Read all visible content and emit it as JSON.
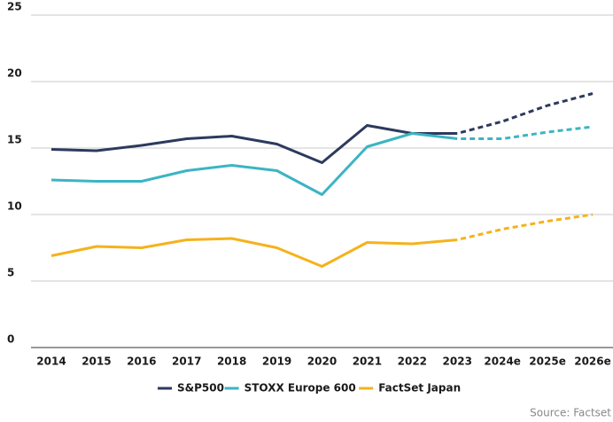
{
  "chart_data": {
    "type": "line",
    "categories": [
      "2014",
      "2015",
      "2016",
      "2017",
      "2018",
      "2019",
      "2020",
      "2021",
      "2022",
      "2023",
      "2024e",
      "2025e",
      "2026e"
    ],
    "series": [
      {
        "name": "S&P500",
        "color": "#2d3a5e",
        "values": [
          14.9,
          14.8,
          15.2,
          15.7,
          15.9,
          15.3,
          13.9,
          16.7,
          16.1,
          16.1,
          17.0,
          18.2,
          19.1
        ]
      },
      {
        "name": "STOXX Europe 600",
        "color": "#3cb4c3",
        "values": [
          12.6,
          12.5,
          12.5,
          13.3,
          13.7,
          13.3,
          11.5,
          15.1,
          16.1,
          15.7,
          15.7,
          16.2,
          16.6
        ]
      },
      {
        "name": "FactSet Japan",
        "color": "#f5b21c",
        "values": [
          6.9,
          7.6,
          7.5,
          8.1,
          8.2,
          7.5,
          6.1,
          7.9,
          7.8,
          8.1,
          8.9,
          9.5,
          10.0
        ]
      }
    ],
    "dashed_from": "2023",
    "ylim": [
      0,
      25
    ],
    "yticks": [
      0,
      5,
      10,
      15,
      20,
      25
    ],
    "grid": true,
    "legend": "bottom",
    "source": "Source: Factset"
  }
}
